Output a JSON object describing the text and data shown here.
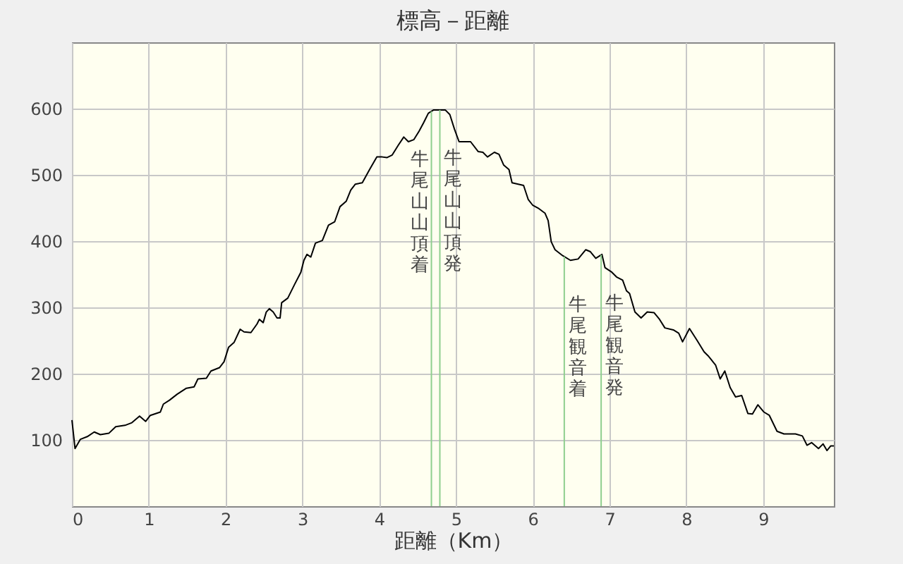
{
  "chart_data": {
    "type": "line",
    "title": "標高－距離",
    "xlabel": "距離（Km）",
    "x": [
      0,
      0.04,
      0.11,
      0.2,
      0.29,
      0.37,
      0.48,
      0.57,
      0.69,
      0.78,
      0.88,
      0.96,
      1.02,
      1.15,
      1.19,
      1.27,
      1.37,
      1.49,
      1.59,
      1.64,
      1.75,
      1.81,
      1.92,
      1.98,
      2.04,
      2.11,
      2.19,
      2.24,
      2.33,
      2.41,
      2.44,
      2.49,
      2.53,
      2.57,
      2.62,
      2.67,
      2.71,
      2.73,
      2.81,
      2.9,
      2.98,
      3.02,
      3.06,
      3.11,
      3.17,
      3.26,
      3.34,
      3.42,
      3.49,
      3.57,
      3.63,
      3.69,
      3.78,
      3.88,
      3.97,
      4.04,
      4.1,
      4.17,
      4.25,
      4.32,
      4.38,
      4.45,
      4.52,
      4.58,
      4.64,
      4.71,
      4.86,
      4.92,
      4.98,
      5.04,
      5.07,
      5.19,
      5.29,
      5.35,
      5.41,
      5.5,
      5.56,
      5.62,
      5.69,
      5.73,
      5.81,
      5.88,
      5.94,
      6,
      6.08,
      6.16,
      6.2,
      6.24,
      6.29,
      6.39,
      6.49,
      6.59,
      6.69,
      6.75,
      6.82,
      6.9,
      6.94,
      7.03,
      7.09,
      7.17,
      7.22,
      7.26,
      7.33,
      7.41,
      7.49,
      7.58,
      7.65,
      7.72,
      7.83,
      7.9,
      7.95,
      8.04,
      8.14,
      8.23,
      8.29,
      8.38,
      8.44,
      8.5,
      8.57,
      8.64,
      8.72,
      8.8,
      8.86,
      8.93,
      9.01,
      9.08,
      9.18,
      9.27,
      9.42,
      9.51,
      9.57,
      9.63,
      9.72,
      9.78,
      9.83,
      9.88,
      9.92
    ],
    "series": [
      {
        "color": "#000000",
        "values": [
          130,
          87,
          101,
          105,
          112,
          108,
          110,
          120,
          122,
          126,
          136,
          128,
          137,
          142,
          154,
          160,
          169,
          178,
          180,
          192,
          193,
          204,
          209,
          218,
          240,
          247,
          267,
          263,
          262,
          275,
          282,
          277,
          293,
          298,
          293,
          284,
          284,
          307,
          314,
          335,
          353,
          371,
          380,
          376,
          397,
          401,
          424,
          429,
          452,
          460,
          477,
          486,
          488,
          509,
          527,
          527,
          526,
          530,
          545,
          557,
          550,
          553,
          566,
          579,
          593,
          598,
          598,
          591,
          569,
          550,
          550,
          550,
          535,
          534,
          527,
          534,
          531,
          515,
          508,
          488,
          486,
          484,
          463,
          454,
          449,
          442,
          431,
          399,
          387,
          378,
          371,
          373,
          387,
          384,
          374,
          380,
          360,
          353,
          346,
          341,
          325,
          321,
          293,
          284,
          293,
          292,
          282,
          269,
          266,
          261,
          248,
          268,
          250,
          233,
          226,
          213,
          192,
          204,
          179,
          165,
          167,
          140,
          139,
          153,
          142,
          137,
          113,
          109,
          109,
          106,
          92,
          96,
          87,
          94,
          84,
          91,
          91
        ]
      }
    ],
    "xlim": [
      0,
      9.92
    ],
    "xticks": [
      0,
      1,
      2,
      3,
      4,
      5,
      6,
      7,
      8,
      9
    ],
    "ylim": [
      0,
      700
    ],
    "yticks": [
      100,
      200,
      300,
      400,
      500,
      600
    ],
    "grid": true,
    "ref_lines": [
      {
        "axis": "x",
        "value": 4.68,
        "label": "牛尾山山頂着",
        "color": "#8fcf8f"
      },
      {
        "axis": "x",
        "value": 4.79,
        "label": "牛尾山山頂発",
        "color": "#8fcf8f"
      },
      {
        "axis": "x",
        "value": 6.41,
        "label": "牛尾観音着",
        "color": "#8fcf8f"
      },
      {
        "axis": "x",
        "value": 6.89,
        "label": "牛尾観音発",
        "color": "#8fcf8f"
      }
    ]
  }
}
